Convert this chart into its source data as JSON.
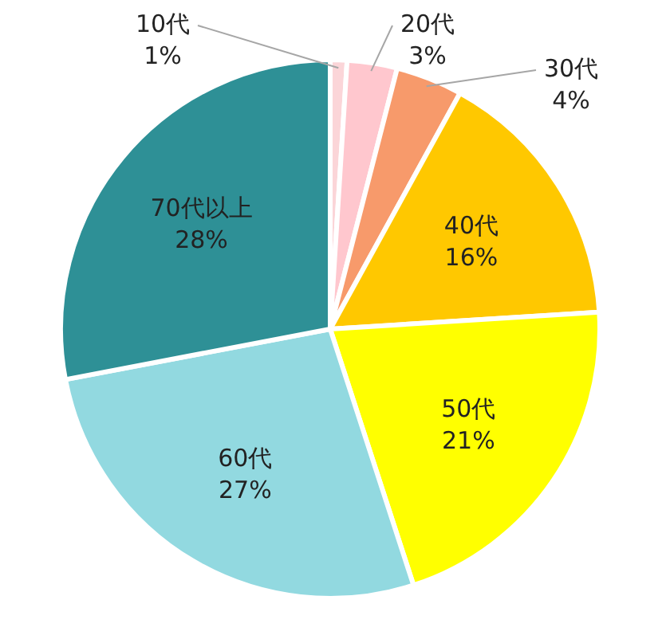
{
  "chart_data": {
    "type": "pie",
    "categories": [
      "10代",
      "20代",
      "30代",
      "40代",
      "50代",
      "60代",
      "70代以上"
    ],
    "values": [
      1,
      3,
      4,
      16,
      21,
      27,
      28
    ],
    "value_labels": [
      "1%",
      "3%",
      "4%",
      "16%",
      "21%",
      "27%",
      "28%"
    ],
    "colors": [
      "#fbd5d8",
      "#ffc7ce",
      "#f79a6b",
      "#ffc800",
      "#ffff00",
      "#92d9e0",
      "#2e9096"
    ],
    "legend": false
  }
}
